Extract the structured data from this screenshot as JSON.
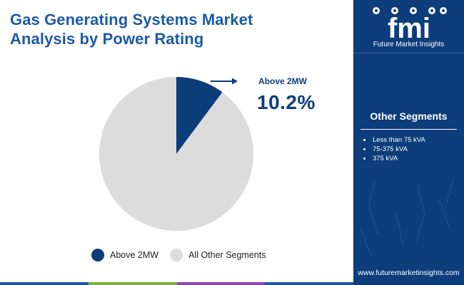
{
  "title": {
    "line1": "Gas Generating Systems Market",
    "line2": "Analysis by Power Rating"
  },
  "chart_data": {
    "type": "pie",
    "title": "Gas Generating Systems Market Analysis by Power Rating",
    "unit": "%",
    "slices": [
      {
        "name": "Above 2MW",
        "value": 10.2,
        "color": "#0b3d7a"
      },
      {
        "name": "All Other Segments",
        "value": 89.8,
        "color": "#dcdcdc"
      }
    ],
    "callout": {
      "label": "Above 2MW",
      "value_text": "10.2%"
    },
    "legend": [
      "Above 2MW",
      "All Other Segments"
    ],
    "legend_placement": "bottom"
  },
  "sidebar": {
    "logo_text": "fmi",
    "logo_tagline": "Future Market Insights",
    "heading": "Other Segments",
    "items": [
      "Less than 75 kVA",
      "75-375 kVA",
      "375 kVA"
    ],
    "website": "www.futuremarketinsights.com"
  },
  "colors": {
    "title": "#1d5aa6",
    "primary": "#0b3d7a",
    "secondary": "#dcdcdc",
    "sidebar_bg": "#0d3d7b",
    "bottom_bar": [
      "#1d5aa6",
      "#7cb342",
      "#8e44ad",
      "#1d5aa6"
    ]
  }
}
